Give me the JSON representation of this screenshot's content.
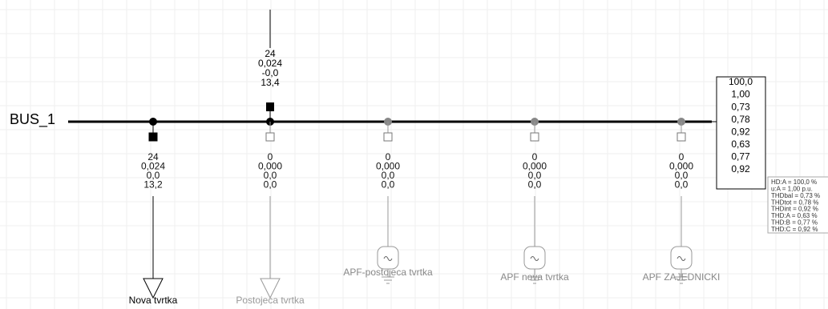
{
  "bus": {
    "name": "BUS_1",
    "results": [
      "100,0",
      "1,00",
      "0,73",
      "0,78",
      "0,92",
      "0,63",
      "0,77",
      "0,92"
    ]
  },
  "tooltip": [
    "HD:A = 100,0 %",
    "u:A = 1,00 p.u.",
    "THDbal = 0,73 %",
    "THDtot = 0,78 %",
    "THDint = 0,92 %",
    "THD:A = 0,63 %",
    "THD:B = 0,77 %",
    "THD:C = 0,92 %"
  ],
  "branches": [
    {
      "label": "Nova tvrtka",
      "results": [
        "24",
        "0,024",
        "0,0",
        "13,2"
      ]
    },
    {
      "label": "Postojeca tvrtka",
      "results": [
        "0",
        "0,000",
        "0,0",
        "0,0"
      ],
      "results_above": [
        "24",
        "0,024",
        "-0,0",
        "13,4"
      ]
    },
    {
      "label": "APF-postojeca tvrtka",
      "results": [
        "0",
        "0,000",
        "0,0",
        "0,0"
      ]
    },
    {
      "label": "APF nova tvrtka",
      "results": [
        "0",
        "0,000",
        "0,0",
        "0,0"
      ]
    },
    {
      "label": "APF ZAJEDNICKI",
      "results": [
        "0",
        "0,000",
        "0,0",
        "0,0"
      ]
    }
  ]
}
